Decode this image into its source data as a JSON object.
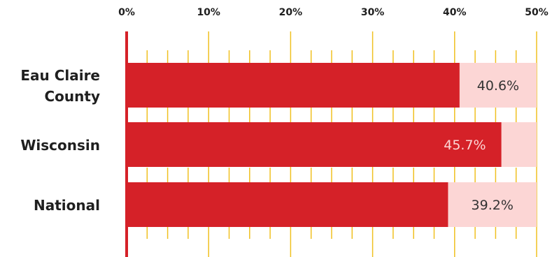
{
  "chart_data": {
    "type": "bar",
    "orientation": "horizontal",
    "categories": [
      [
        "Eau Claire",
        "County"
      ],
      [
        "Wisconsin"
      ],
      [
        "National"
      ]
    ],
    "values": [
      40.6,
      45.7,
      39.2
    ],
    "value_labels": [
      "40.6%",
      "45.7%",
      "39.2%"
    ],
    "xlim": [
      0,
      50
    ],
    "x_ticks": [
      0,
      10,
      20,
      30,
      40,
      50
    ],
    "x_tick_labels": [
      "0%",
      "10%",
      "20%",
      "30%",
      "40%",
      "50%"
    ],
    "minor_tick_step": 2.5,
    "title": "",
    "xlabel": "",
    "ylabel": "",
    "grid": true,
    "legend": "none",
    "colors": {
      "bar": "#d52128",
      "bar_track": "#fcd6d5",
      "axis_line": "#d52128",
      "grid": "#f0c020",
      "tick_text": "#1f1f1f",
      "category_text": "#1f1f1f",
      "value_text_on_track": "#333333",
      "value_text_on_bar": "#fcd6d5"
    }
  }
}
